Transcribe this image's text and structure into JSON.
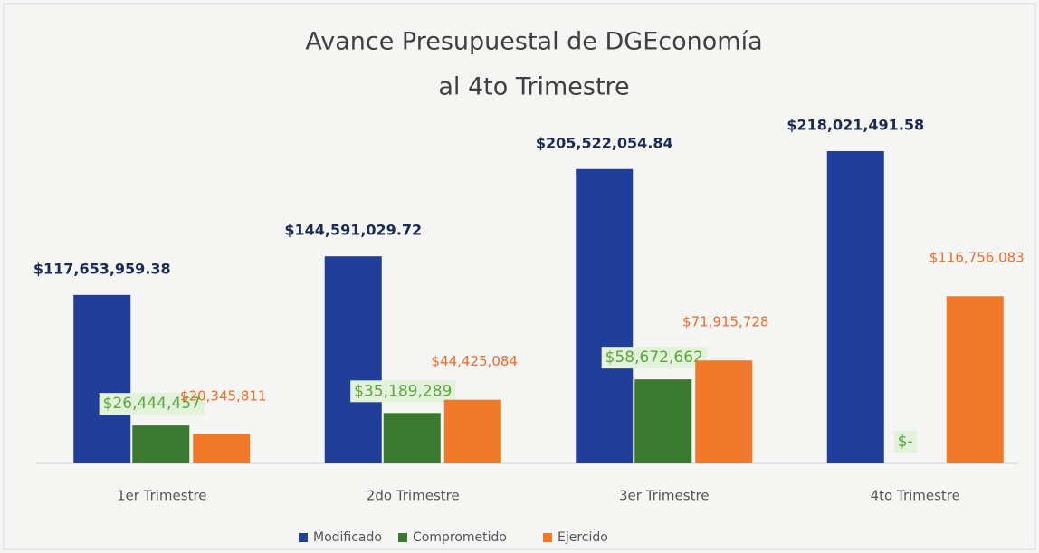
{
  "chart_data": {
    "type": "bar",
    "title": [
      "Avance Presupuestal de DGEconomía",
      "al 4to Trimestre"
    ],
    "categories": [
      "1er Trimestre",
      "2do Trimestre",
      "3er Trimestre",
      "4to Trimestre"
    ],
    "series": [
      {
        "name": "Modificado",
        "color": "#1f3f98",
        "values": [
          117653959.38,
          144591029.72,
          205522054.84,
          218021491.58
        ],
        "value_labels": [
          "$117,653,959.38",
          "$144,591,029.72",
          "$205,522,054.84",
          "$218,021,491.58"
        ]
      },
      {
        "name": "Comprometido",
        "color": "#3a7a2e",
        "values": [
          26444457,
          35189289,
          58672662,
          0
        ],
        "value_labels": [
          "$26,444,457",
          "$35,189,289",
          "$58,672,662",
          "$-"
        ]
      },
      {
        "name": "Ejercido",
        "color": "#f07a2a",
        "values": [
          20345811,
          44425084,
          71915728,
          116756083
        ],
        "value_labels": [
          "$20,345,811",
          "$44,425,084",
          "$71,915,728",
          "$116,756,083"
        ]
      }
    ],
    "legend": "bottom"
  }
}
